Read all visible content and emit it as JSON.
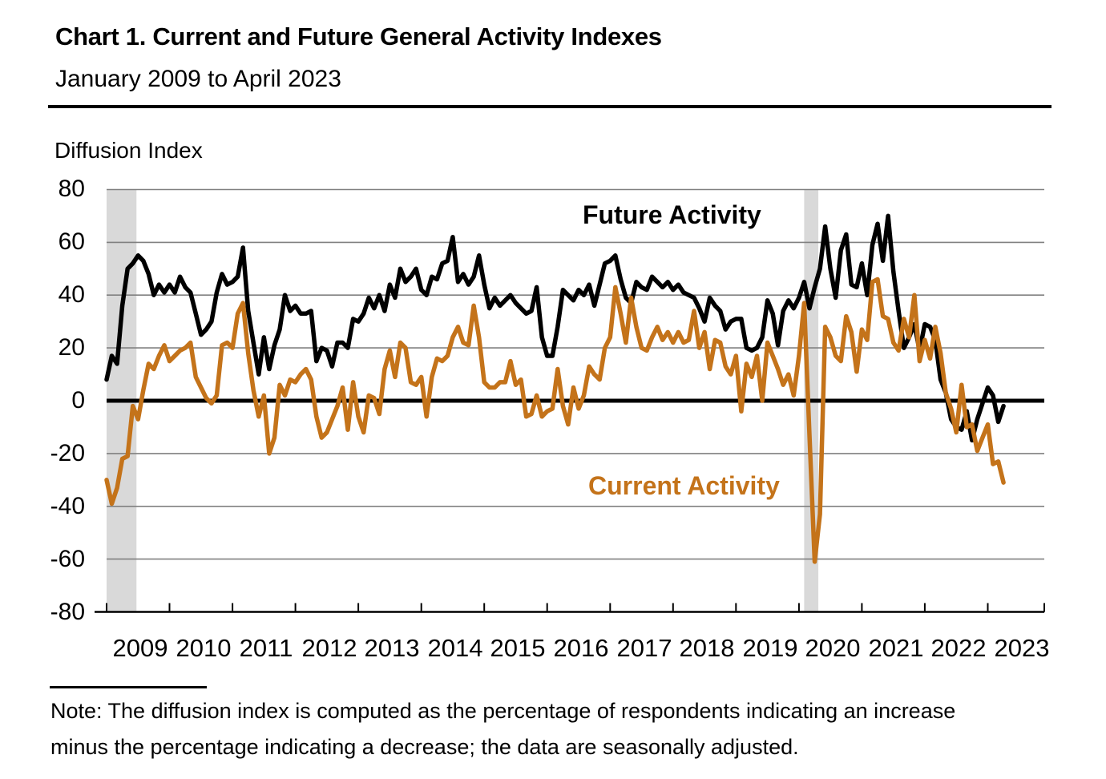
{
  "note": {
    "lines": [
      "Note: The diffusion index is computed as the percentage of respondents indicating an increase",
      "minus the percentage indicating a decrease; the data are seasonally adjusted."
    ]
  },
  "colors": {
    "future_series": "#000000",
    "current_series": "#C4731A",
    "recession_band": "#D9D9D9",
    "gridline": "#808080",
    "axis": "#000000"
  },
  "chart_data": {
    "type": "line",
    "title": "Chart 1. Current and Future General Activity Indexes",
    "subtitle": "January 2009 to April 2023",
    "ylabel": "Diffusion Index",
    "ylim": [
      -80,
      80
    ],
    "y_ticks": [
      80,
      60,
      40,
      20,
      0,
      -20,
      -40,
      -60,
      -80
    ],
    "x_tick_years": [
      "2009",
      "2010",
      "2011",
      "2012",
      "2013",
      "2014",
      "2015",
      "2016",
      "2017",
      "2018",
      "2019",
      "2020",
      "2021",
      "2022",
      "2023"
    ],
    "frequency": "monthly",
    "start_month": "2009-01",
    "end_month": "2023-04",
    "grid": "horizontal",
    "zero_line": true,
    "legend_position": "inline-annotations",
    "recession_shading": [
      {
        "start": "2009-01",
        "end": "2009-06"
      },
      {
        "start": "2020-02",
        "end": "2020-04"
      }
    ],
    "series": [
      {
        "name": "Future Activity",
        "color": "#000000",
        "values": [
          8,
          17,
          14,
          36,
          50,
          52,
          55,
          53,
          48,
          40,
          44,
          41,
          44,
          41,
          47,
          43,
          41,
          33,
          25,
          27,
          30,
          41,
          48,
          44,
          45,
          47,
          58,
          34,
          22,
          10,
          24,
          12,
          21,
          27,
          40,
          34,
          36,
          33,
          33,
          34,
          15,
          20,
          19,
          13,
          22,
          22,
          20,
          31,
          30,
          33,
          39,
          35,
          40,
          34,
          44,
          39,
          50,
          45,
          47,
          50,
          42,
          40,
          47,
          46,
          52,
          53,
          62,
          45,
          48,
          44,
          47,
          55,
          44,
          35,
          39,
          36,
          38,
          40,
          37,
          35,
          33,
          34,
          43,
          24,
          17,
          17,
          28,
          42,
          40,
          38,
          42,
          40,
          44,
          36,
          44,
          52,
          53,
          55,
          46,
          39,
          37,
          45,
          43,
          42,
          47,
          45,
          43,
          45,
          42,
          44,
          41,
          40,
          39,
          35,
          30,
          39,
          36,
          34,
          27,
          30,
          31,
          31,
          20,
          19,
          20,
          24,
          38,
          33,
          21,
          34,
          38,
          35,
          39,
          45,
          35,
          43,
          50,
          66,
          50,
          39,
          57,
          63,
          44,
          43,
          52,
          40,
          59,
          67,
          53,
          70,
          49,
          34,
          20,
          24,
          29,
          19,
          29,
          28,
          23,
          8,
          3,
          -7,
          -10,
          -11,
          -4,
          -15,
          -7,
          -1,
          5,
          2,
          -8,
          -2
        ]
      },
      {
        "name": "Current Activity",
        "color": "#C4731A",
        "values": [
          -30,
          -39,
          -33,
          -22,
          -21,
          -2,
          -7,
          4,
          14,
          12,
          17,
          21,
          15,
          17,
          19,
          20,
          22,
          9,
          5,
          1,
          -1,
          2,
          21,
          22,
          20,
          33,
          37,
          18,
          4,
          -6,
          2,
          -20,
          -14,
          6,
          2,
          8,
          7,
          10,
          12,
          8,
          -6,
          -14,
          -12,
          -7,
          -2,
          5,
          -11,
          7,
          -6,
          -12,
          2,
          1,
          -5,
          12,
          19,
          9,
          22,
          20,
          7,
          6,
          9,
          -6,
          9,
          16,
          15,
          17,
          24,
          28,
          22,
          21,
          36,
          24,
          7,
          5,
          5,
          7,
          7,
          15,
          6,
          8,
          -6,
          -5,
          2,
          -6,
          -4,
          -3,
          12,
          -2,
          -9,
          5,
          -3,
          2,
          13,
          10,
          8,
          20,
          24,
          43,
          33,
          22,
          39,
          28,
          20,
          19,
          24,
          28,
          23,
          26,
          22,
          26,
          22,
          23,
          34,
          20,
          26,
          12,
          23,
          22,
          13,
          10,
          17,
          -4,
          14,
          9,
          17,
          0,
          22,
          17,
          12,
          6,
          10,
          2,
          17,
          37,
          -13,
          -61,
          -43,
          28,
          24,
          17,
          15,
          32,
          26,
          11,
          27,
          23,
          45,
          46,
          32,
          31,
          22,
          19,
          31,
          24,
          40,
          15,
          23,
          16,
          28,
          18,
          3,
          -3,
          -12,
          6,
          -10,
          -9,
          -19,
          -14,
          -9,
          -24,
          -23,
          -31
        ]
      }
    ]
  }
}
